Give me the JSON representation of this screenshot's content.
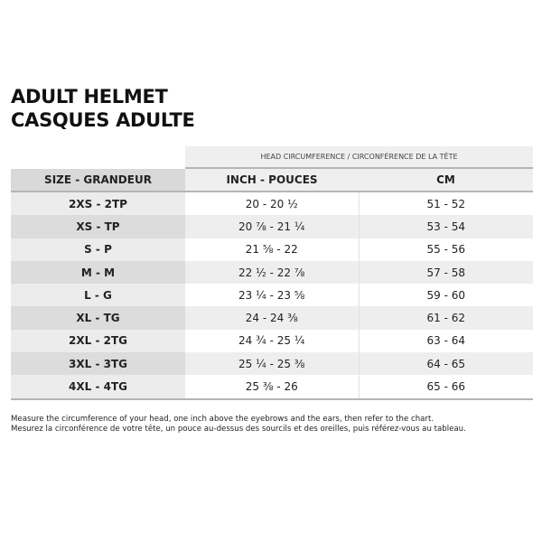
{
  "title_lines": [
    "ADULT HELMET",
    "CASQUES ADULTE"
  ],
  "super_header": "HEAD CIRCUMFERENCE / CIRCONFÉRENCE DE LA TÊTE",
  "columns": [
    "SIZE - GRANDEUR",
    "INCH - POUCES",
    "CM"
  ],
  "rows": [
    {
      "size": "2XS - 2TP",
      "inch": "20 - 20 ½",
      "cm": "51 - 52"
    },
    {
      "size": "XS - TP",
      "inch": "20 ⅞ - 21 ¼",
      "cm": "53 - 54"
    },
    {
      "size": "S - P",
      "inch": "21 ⅝ - 22",
      "cm": "55 - 56"
    },
    {
      "size": "M - M",
      "inch": "22 ½ - 22 ⅞",
      "cm": "57 - 58"
    },
    {
      "size": "L - G",
      "inch": "23 ¼ - 23 ⅝",
      "cm": "59 - 60"
    },
    {
      "size": "XL - TG",
      "inch": "24 - 24 ⅜",
      "cm": "61 - 62"
    },
    {
      "size": "2XL - 2TG",
      "inch": "24 ¾ - 25 ¼",
      "cm": "63 - 64"
    },
    {
      "size": "3XL - 3TG",
      "inch": "25 ¼ - 25 ⅜",
      "cm": "64 - 65"
    },
    {
      "size": "4XL - 4TG",
      "inch": "25 ⅜ - 26",
      "cm": "65 - 66"
    }
  ],
  "notes": [
    "Measure the circumference of your head, one inch above the eyebrows and the ears, then refer to the chart.",
    "Mesurez la circonférence de votre tête, un pouce au-dessus des sourcils et des oreilles, puis référez-vous au tableau."
  ]
}
